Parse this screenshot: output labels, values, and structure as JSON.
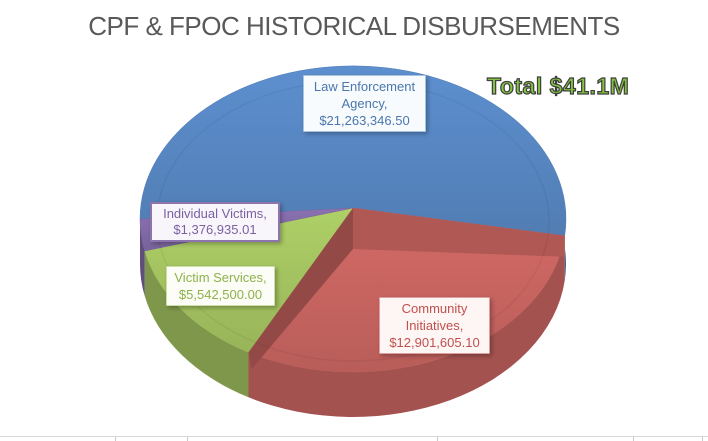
{
  "title": {
    "text": "CPF & FPOC HISTORICAL DISBURSEMENTS",
    "color": "#595959"
  },
  "annotation": {
    "text": "Total $41.1M",
    "color": "#84C341"
  },
  "chart_data": {
    "type": "pie",
    "projection": "3d",
    "title": "CPF & FPOC HISTORICAL DISBURSEMENTS",
    "categories": [
      "Law Enforcement Agency",
      "Community Initiatives",
      "Victim Services",
      "Individual Victims"
    ],
    "values": [
      21263346.5,
      12901605.1,
      5542500.0,
      1376935.01
    ],
    "percentages": [
      51.8,
      31.4,
      13.5,
      3.4
    ],
    "total": 41084386.61,
    "total_annotation": "Total $41.1M",
    "colors": [
      "#5786C1",
      "#C76460",
      "#A3C260",
      "#816AA6"
    ],
    "start_angle_deg": 180,
    "direction": "clockwise",
    "legend": "none",
    "data_labels": "category name and currency value in outlined boxes"
  },
  "slices": [
    {
      "name_label": "Law Enforcement Agency,",
      "value_label": "$21,263,346.50",
      "text_color": "#4A77AE",
      "border_color": "#A9C2E0",
      "bg": "#F8FBFD"
    },
    {
      "name_label": "Community Initiatives,",
      "value_label": "$12,901,605.10",
      "text_color": "#C0504D",
      "border_color": "#DCA09E",
      "bg": "#FDF6F5"
    },
    {
      "name_label": "Victim Services,",
      "value_label": "$5,542,500.00",
      "text_color": "#8FB14B",
      "border_color": "#CCDFA6",
      "bg": "#FBFDF6"
    },
    {
      "name_label": "Individual Victims,",
      "value_label": "$1,376,935.01",
      "text_color": "#7B61A2",
      "border_color": "#8D74AE",
      "bg": "#F8F6FB"
    }
  ]
}
